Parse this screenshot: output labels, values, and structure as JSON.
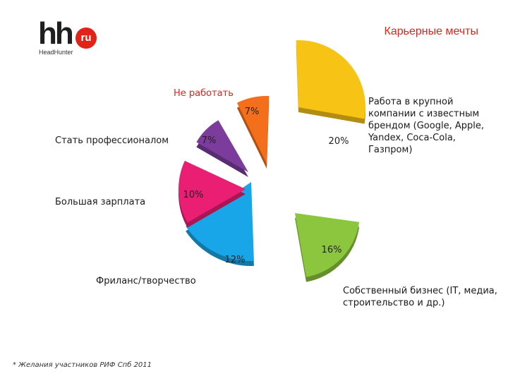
{
  "header": {
    "logo_text": "hh",
    "logo_badge": "ru",
    "logo_sub": "HeadHunter",
    "title": "Карьерные мечты"
  },
  "chart_data": {
    "type": "pie",
    "title": "Карьерные мечты",
    "slices": [
      {
        "label": "Работа в крупной компании с известным брендом (Google, Apple, Yandex, Coca-Cola, Газпром)",
        "value": 20,
        "display": "20%",
        "color": "#f7c416"
      },
      {
        "label": "Собственный бизнес (IT, медиа, строительство и др.)",
        "value": 16,
        "display": "16%",
        "color": "#8cc63e"
      },
      {
        "label": "Фриланс/творчество",
        "value": 12,
        "display": "12%",
        "color": "#19a6e8"
      },
      {
        "label": "Большая зарплата",
        "value": 10,
        "display": "10%",
        "color": "#ea1e73"
      },
      {
        "label": "Стать профессионалом",
        "value": 7,
        "display": "7%",
        "color": "#7b3c9c"
      },
      {
        "label": "Не работать",
        "value": 7,
        "display": "7%",
        "color": "#f46f1b"
      }
    ]
  },
  "labels": {
    "brand": "Работа в крупной компании с известным брендом (Google, Apple, Yandex, Coca-Cola, Газпром)",
    "business": "Собственный бизнес (IT, медиа, строительство и др.)",
    "freelance": "Фриланс/творчество",
    "salary": "Большая зарплата",
    "professional": "Стать профессионалом",
    "not_work": "Не работать"
  },
  "footnote": "* Желания участников РИФ Спб 2011"
}
